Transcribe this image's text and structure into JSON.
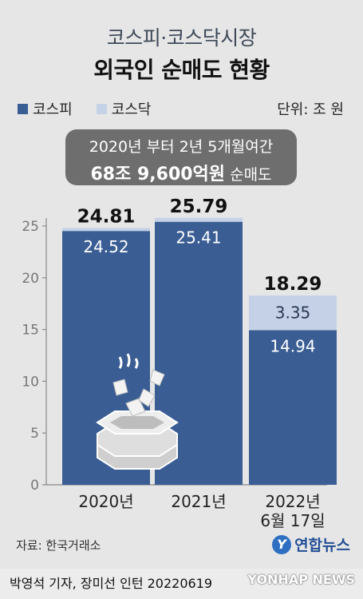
{
  "title": {
    "line1": "코스피·코스닥시장",
    "line2": "외국인 순매도 현황"
  },
  "legend": [
    {
      "name": "코스피",
      "color": "#3a5d94"
    },
    {
      "name": "코스닥",
      "color": "#c5d1e6"
    }
  ],
  "unit": "단위: 조 원",
  "callout": {
    "line1": "2020년 부터 2년 5개월여간",
    "amount": "68조 9,600억원",
    "suffix": "순매도"
  },
  "chart_data": {
    "type": "bar",
    "stacked": true,
    "categories": [
      "2020년",
      "2021년",
      "2022년\n6월 17일"
    ],
    "series": [
      {
        "name": "코스피",
        "values": [
          24.52,
          25.41,
          14.94
        ],
        "color": "#3a5d94"
      },
      {
        "name": "코스닥",
        "values": [
          0.29,
          0.38,
          3.35
        ],
        "color": "#c5d1e6"
      }
    ],
    "totals": [
      24.81,
      25.79,
      18.29
    ],
    "value_labels": {
      "kospi": [
        "24.52",
        "25.41",
        "14.94"
      ],
      "kosdaq": [
        "",
        "",
        "3.35"
      ],
      "totals": [
        "24.81",
        "25.79",
        "18.29"
      ]
    },
    "ylim": [
      0,
      25
    ],
    "yticks": [
      0,
      5,
      10,
      15,
      20,
      25
    ],
    "grid": false
  },
  "source": "자료: 한국거래소",
  "logo": {
    "mark": "Y",
    "name": "연합뉴스"
  },
  "footer": "박영석 기자, 장미선 인턴  20220619",
  "watermark": "YONHAP NEWS"
}
